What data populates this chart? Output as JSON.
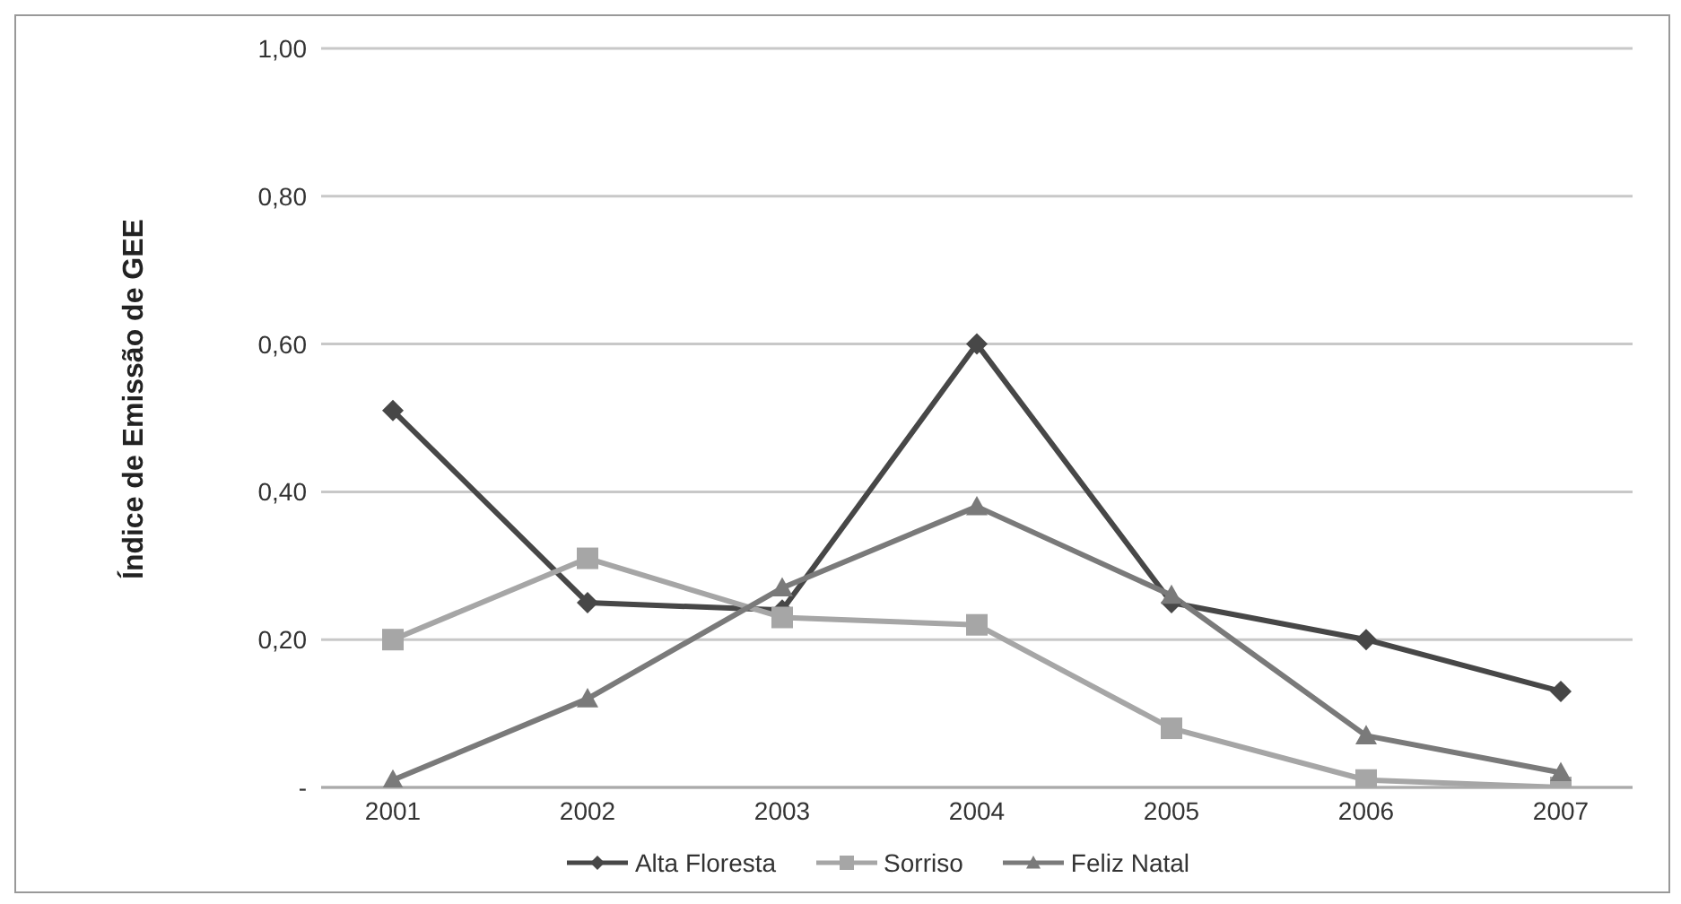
{
  "chart_data": {
    "type": "line",
    "ylabel": "Índice de Emissão de GEE",
    "categories": [
      "2001",
      "2002",
      "2003",
      "2004",
      "2005",
      "2006",
      "2007"
    ],
    "series": [
      {
        "name": "Alta Floresta",
        "color": "#474747",
        "marker": "diamond",
        "values": [
          0.51,
          0.25,
          0.24,
          0.6,
          0.25,
          0.2,
          0.13
        ]
      },
      {
        "name": "Sorriso",
        "color": "#a6a6a6",
        "marker": "square",
        "values": [
          0.2,
          0.31,
          0.23,
          0.22,
          0.08,
          0.01,
          0
        ]
      },
      {
        "name": "Feliz Natal",
        "color": "#7a7a7a",
        "marker": "triangle",
        "values": [
          0.01,
          0.12,
          0.27,
          0.38,
          0.26,
          0.07,
          0.02
        ]
      }
    ],
    "ylim": [
      0,
      1
    ],
    "yticks": [
      {
        "value": 0,
        "label": "-"
      },
      {
        "value": 0.2,
        "label": "0,20"
      },
      {
        "value": 0.4,
        "label": "0,40"
      },
      {
        "value": 0.6,
        "label": "0,60"
      },
      {
        "value": 0.8,
        "label": "0,80"
      },
      {
        "value": 1,
        "label": "1,00"
      }
    ],
    "grid": "y",
    "legend": "bottom"
  }
}
